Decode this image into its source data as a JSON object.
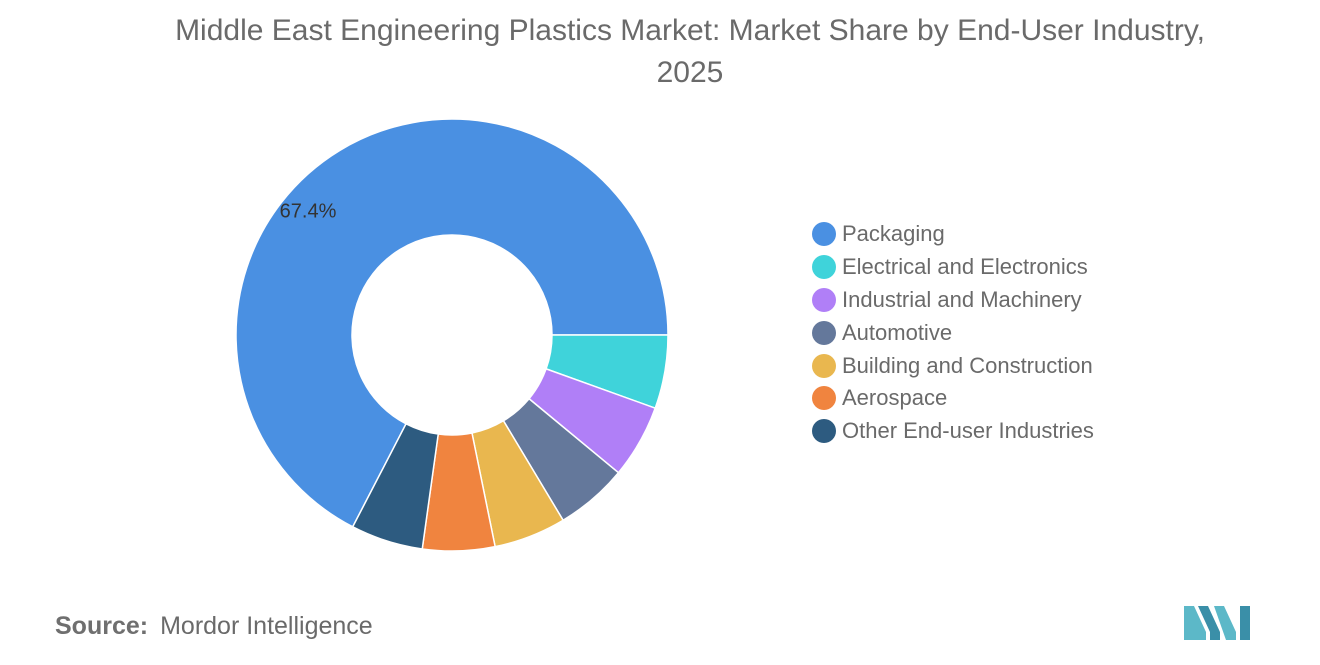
{
  "title": "Middle East Engineering Plastics Market: Market Share by End-User Industry, 2025",
  "source": {
    "label": "Source:",
    "value": "Mordor Intelligence"
  },
  "logo": {
    "icon": "mordor-intelligence-logo",
    "color": "#5cb8c8"
  },
  "chart_data": {
    "type": "pie",
    "style": "donut",
    "categories": [
      "Packaging",
      "Electrical and Electronics",
      "Industrial and Machinery",
      "Automotive",
      "Building and Construction",
      "Aerospace",
      "Other End-user Industries"
    ],
    "values": [
      67.4,
      5.5,
      5.5,
      5.4,
      5.4,
      5.4,
      5.4
    ],
    "colors": [
      "#4a90e2",
      "#3fd3da",
      "#b07ff7",
      "#64789b",
      "#e9b74f",
      "#f0843f",
      "#2d5b80"
    ],
    "data_labels": [
      "67.4%",
      "",
      "",
      "",
      "",
      "",
      ""
    ],
    "legend": "right"
  }
}
